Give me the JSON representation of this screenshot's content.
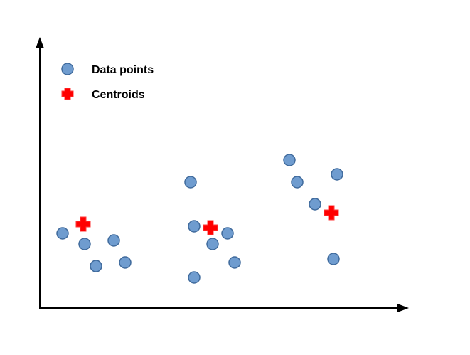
{
  "legend": {
    "data_points_label": "Data points",
    "centroids_label": "Centroids"
  },
  "colors": {
    "point_fill": "#6f9ccf",
    "point_stroke": "#3f6a9c",
    "centroid_fill": "#ff0000",
    "axis": "#000000"
  },
  "chart_data": {
    "type": "scatter",
    "series": [
      {
        "name": "Data points",
        "marker": "circle",
        "points": [
          [
            32,
            105
          ],
          [
            63,
            90
          ],
          [
            79,
            59
          ],
          [
            104,
            95
          ],
          [
            120,
            64
          ],
          [
            212,
            177
          ],
          [
            217,
            115
          ],
          [
            217,
            43
          ],
          [
            243,
            90
          ],
          [
            264,
            105
          ],
          [
            274,
            64
          ],
          [
            351,
            208
          ],
          [
            362,
            177
          ],
          [
            387,
            146
          ],
          [
            418,
            188
          ],
          [
            413,
            69
          ]
        ]
      },
      {
        "name": "Centroids",
        "marker": "cross",
        "points": [
          [
            61,
            118
          ],
          [
            240,
            113
          ],
          [
            410,
            134
          ]
        ]
      }
    ]
  }
}
